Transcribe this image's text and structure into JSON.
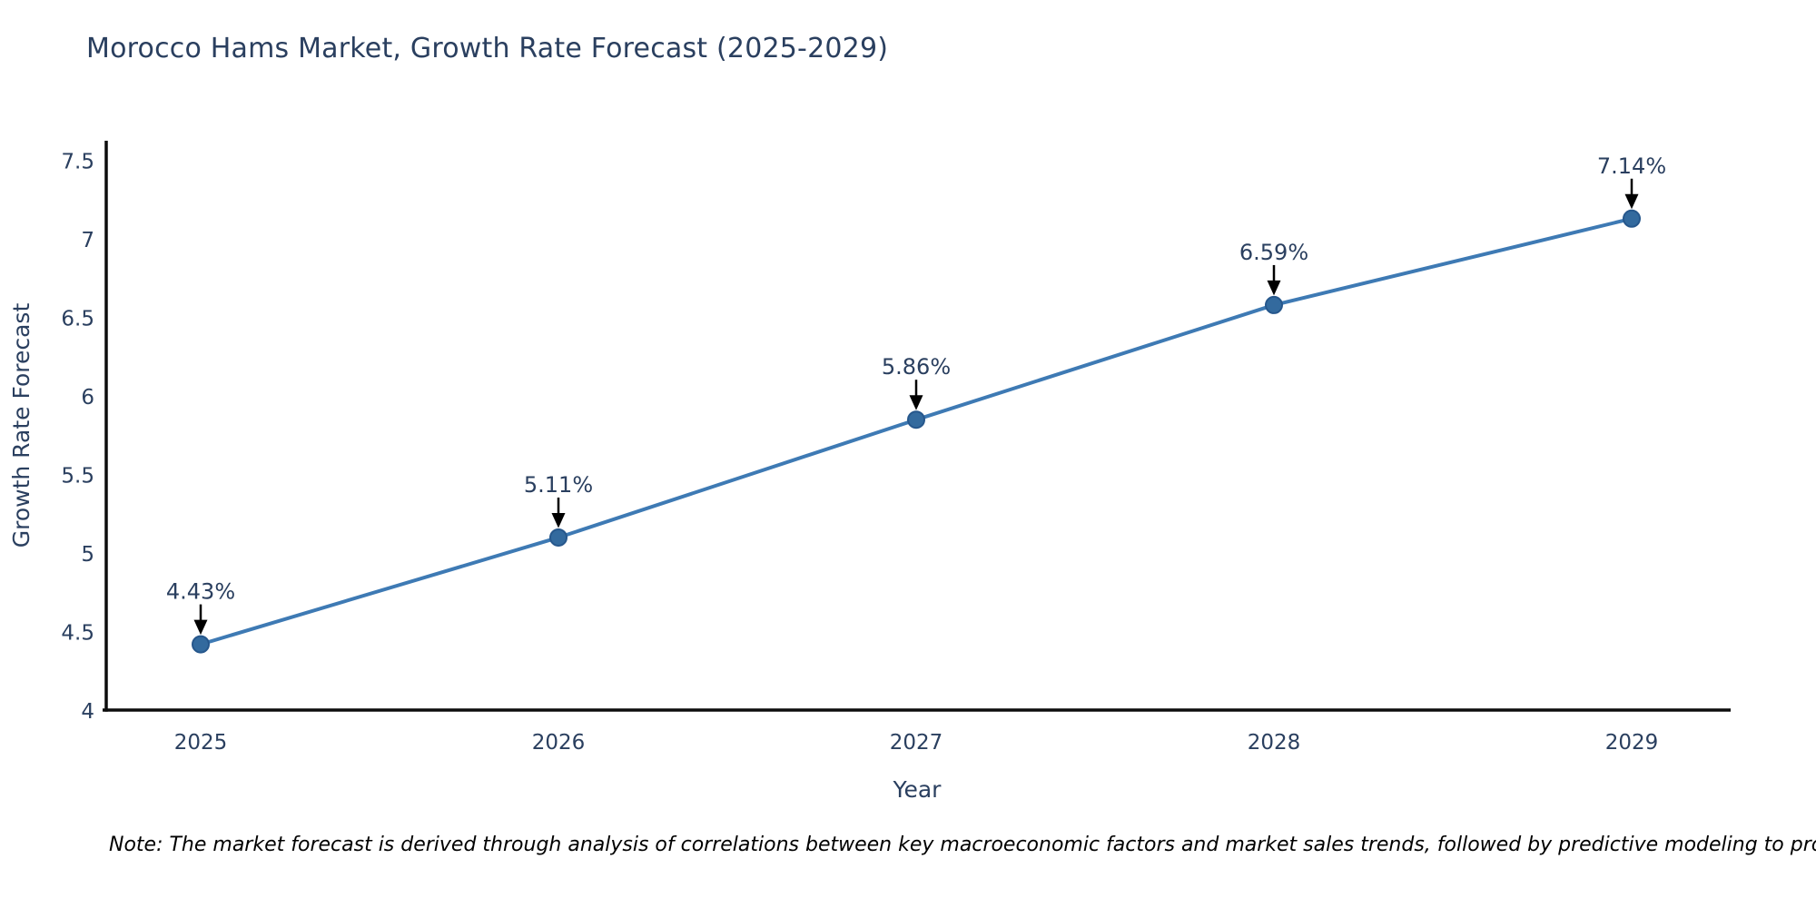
{
  "title": "Morocco Hams Market, Growth Rate Forecast (2025-2029)",
  "note": "Note: The market forecast is derived through analysis of correlations between key macroeconomic factors and market sales trends, followed by predictive modeling to project future sales",
  "chart_data": {
    "type": "line",
    "title": "Morocco Hams Market, Growth Rate Forecast (2025-2029)",
    "xlabel": "Year",
    "ylabel": "Growth Rate Forecast",
    "categories": [
      "2025",
      "2026",
      "2027",
      "2028",
      "2029"
    ],
    "series": [
      {
        "name": "Growth Rate Forecast",
        "values": [
          4.43,
          5.11,
          5.86,
          6.59,
          7.14
        ],
        "point_labels": [
          "4.43%",
          "5.11%",
          "5.86%",
          "6.59%",
          "7.14%"
        ]
      }
    ],
    "ylim": [
      4,
      7.5
    ],
    "yticks": [
      4,
      4.5,
      5,
      5.5,
      6,
      6.5,
      7,
      7.5
    ],
    "grid": false,
    "legend_position": "none",
    "annotation_style": "label-with-down-arrow",
    "colors": {
      "line": "#3e7ab4",
      "marker_fill": "#336a9e",
      "marker_border": "#26578c",
      "axis_line": "#0d0d0d",
      "tick_text": "#2a3f5f",
      "axis_title_text": "#2a3f5f",
      "annotation_text": "#2a3f5f",
      "arrow": "#000000",
      "title_text": "#2a3f5f",
      "note_text": "#000000",
      "background": "#ffffff"
    }
  }
}
